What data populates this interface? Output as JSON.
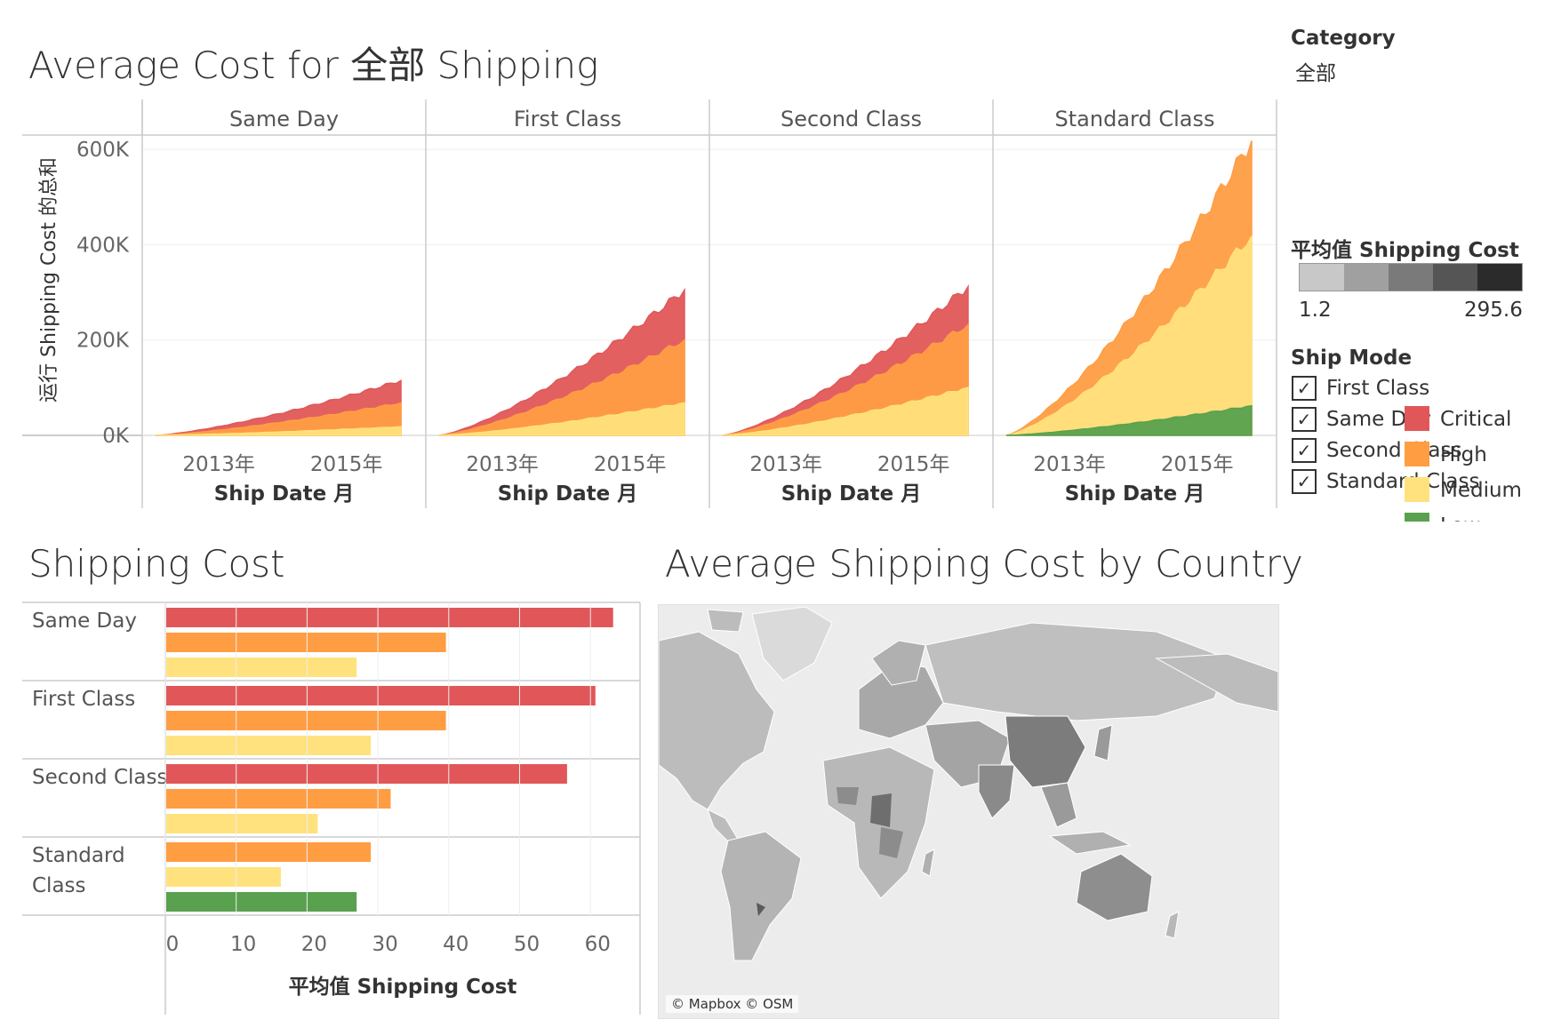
{
  "dashboard": {
    "top_title": "Average Cost for 全部 Shipping",
    "bar_title": "Shipping Cost",
    "map_title": "Average Shipping Cost by Country",
    "map_attribution": "© Mapbox © OSM"
  },
  "filters": {
    "category_title": "Category",
    "category_value": "全部",
    "color_title": "平均值 Shipping Cost",
    "color_min": "1.2",
    "color_max": "295.6",
    "color_ramp": [
      "#c8c8c8",
      "#a0a0a0",
      "#7a7a7a",
      "#555555",
      "#2b2b2b"
    ],
    "ship_mode_title": "Ship Mode",
    "ship_mode_items": [
      {
        "label": "First Class",
        "checked": true
      },
      {
        "label": "Same Day",
        "checked": true
      },
      {
        "label": "Second Class",
        "checked": true
      },
      {
        "label": "Standard Class",
        "checked": true
      }
    ],
    "priority_items": [
      {
        "label": "Critical",
        "color": "#e15759"
      },
      {
        "label": "High",
        "color": "#ff9d43"
      },
      {
        "label": "Medium",
        "color": "#ffe27d"
      },
      {
        "label": "Low",
        "color": "#59a14f"
      }
    ]
  },
  "chart_data": [
    {
      "type": "area",
      "stacked": true,
      "title": "Average Cost for 全部 Shipping",
      "ylabel": "运行 Shipping Cost 的总和",
      "xlabel": "Ship Date 月",
      "x_ticks": [
        "2013年",
        "2015年"
      ],
      "y_ticks": [
        "0K",
        "200K",
        "400K",
        "600K"
      ],
      "ylim": [
        0,
        630000
      ],
      "panels": [
        {
          "name": "Same Day",
          "series": [
            {
              "name": "Critical",
              "end": 115000
            },
            {
              "name": "High",
              "end": 68000
            },
            {
              "name": "Medium",
              "end": 18000
            }
          ]
        },
        {
          "name": "First Class",
          "series": [
            {
              "name": "Critical",
              "end": 305000
            },
            {
              "name": "High",
              "end": 200000
            },
            {
              "name": "Medium",
              "end": 68000
            }
          ]
        },
        {
          "name": "Second Class",
          "series": [
            {
              "name": "Critical",
              "end": 312000
            },
            {
              "name": "High",
              "end": 232000
            },
            {
              "name": "Medium",
              "end": 100000
            }
          ]
        },
        {
          "name": "Standard Class",
          "series": [
            {
              "name": "High",
              "end": 618000
            },
            {
              "name": "Medium",
              "end": 418000
            },
            {
              "name": "Low",
              "end": 62000
            }
          ]
        }
      ]
    },
    {
      "type": "bar",
      "orientation": "horizontal",
      "title": "Shipping Cost",
      "xlabel": "平均值 Shipping Cost",
      "x_ticks": [
        0,
        10,
        20,
        30,
        40,
        50,
        60
      ],
      "xlim": [
        0,
        67
      ],
      "groups": [
        {
          "name": "Same Day",
          "label_lines": [
            "Same Day"
          ],
          "bars": [
            {
              "priority": "Critical",
              "value": 63.2
            },
            {
              "priority": "High",
              "value": 39.6
            },
            {
              "priority": "Medium",
              "value": 27.0
            }
          ]
        },
        {
          "name": "First Class",
          "label_lines": [
            "First Class"
          ],
          "bars": [
            {
              "priority": "Critical",
              "value": 60.7
            },
            {
              "priority": "High",
              "value": 39.6
            },
            {
              "priority": "Medium",
              "value": 29.0
            }
          ]
        },
        {
          "name": "Second Class",
          "label_lines": [
            "Second Class"
          ],
          "bars": [
            {
              "priority": "Critical",
              "value": 56.7
            },
            {
              "priority": "High",
              "value": 31.8
            },
            {
              "priority": "Medium",
              "value": 21.5
            }
          ]
        },
        {
          "name": "Standard Class",
          "label_lines": [
            "Standard",
            "Class"
          ],
          "bars": [
            {
              "priority": "High",
              "value": 29.0
            },
            {
              "priority": "Medium",
              "value": 16.3
            },
            {
              "priority": "Low",
              "value": 27.0
            }
          ]
        }
      ]
    }
  ]
}
